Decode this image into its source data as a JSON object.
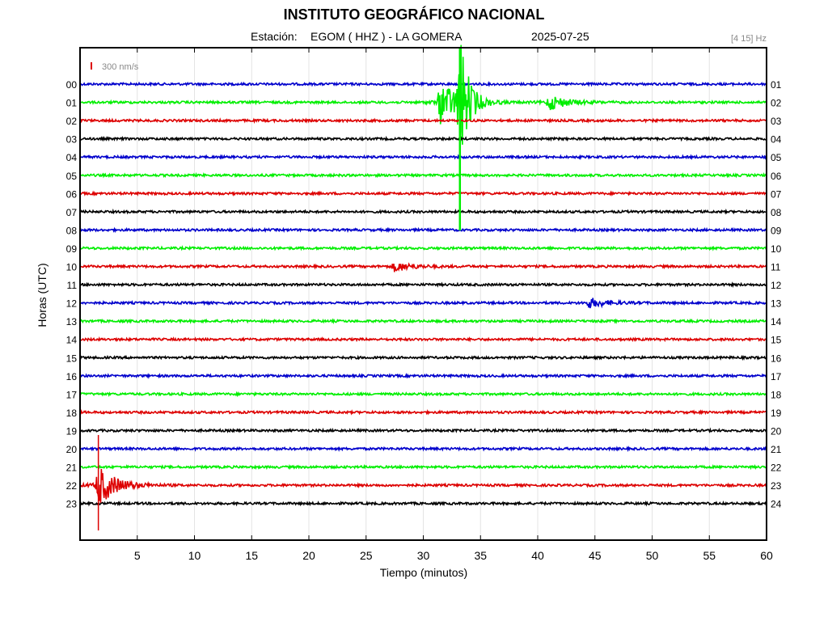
{
  "header": {
    "title": "INSTITUTO GEOGRÁFICO NACIONAL",
    "station_prefix": "Estación:",
    "station": "EGOM ( HHZ ) - LA GOMERA",
    "date": "2025-07-25",
    "band": "[4 15] Hz"
  },
  "chart_data": {
    "type": "line",
    "title": "INSTITUTO GEOGRÁFICO NACIONAL",
    "xlabel": "Tiempo (minutos)",
    "ylabel": "Horas (UTC)",
    "xlim": [
      0,
      60
    ],
    "x_ticks": [
      5,
      10,
      15,
      20,
      25,
      30,
      35,
      40,
      45,
      50,
      55,
      60
    ],
    "scale_label": "300 nm/s",
    "left_labels": [
      "00",
      "01",
      "02",
      "03",
      "04",
      "05",
      "06",
      "07",
      "08",
      "09",
      "10",
      "11",
      "12",
      "13",
      "14",
      "15",
      "16",
      "17",
      "18",
      "19",
      "20",
      "21",
      "22",
      "23"
    ],
    "right_labels": [
      "01",
      "02",
      "03",
      "04",
      "05",
      "06",
      "07",
      "08",
      "09",
      "10",
      "11",
      "12",
      "13",
      "14",
      "15",
      "16",
      "17",
      "18",
      "19",
      "20",
      "21",
      "22",
      "23",
      "24"
    ],
    "trace_colors": [
      "#0000cc",
      "#00ee00",
      "#dd0000",
      "#000000"
    ],
    "grid": true,
    "events": [
      {
        "hour": 1,
        "minute": 31.5,
        "amplitude": "large",
        "note": "onset"
      },
      {
        "hour": 1,
        "minute": 33.2,
        "amplitude": "very large"
      },
      {
        "hour": 1,
        "minute": 41.0,
        "amplitude": "medium"
      },
      {
        "hour": 10,
        "minute": 27.5,
        "amplitude": "small"
      },
      {
        "hour": 12,
        "minute": 44.5,
        "amplitude": "small"
      },
      {
        "hour": 22,
        "minute": 1.6,
        "amplitude": "large"
      }
    ]
  }
}
